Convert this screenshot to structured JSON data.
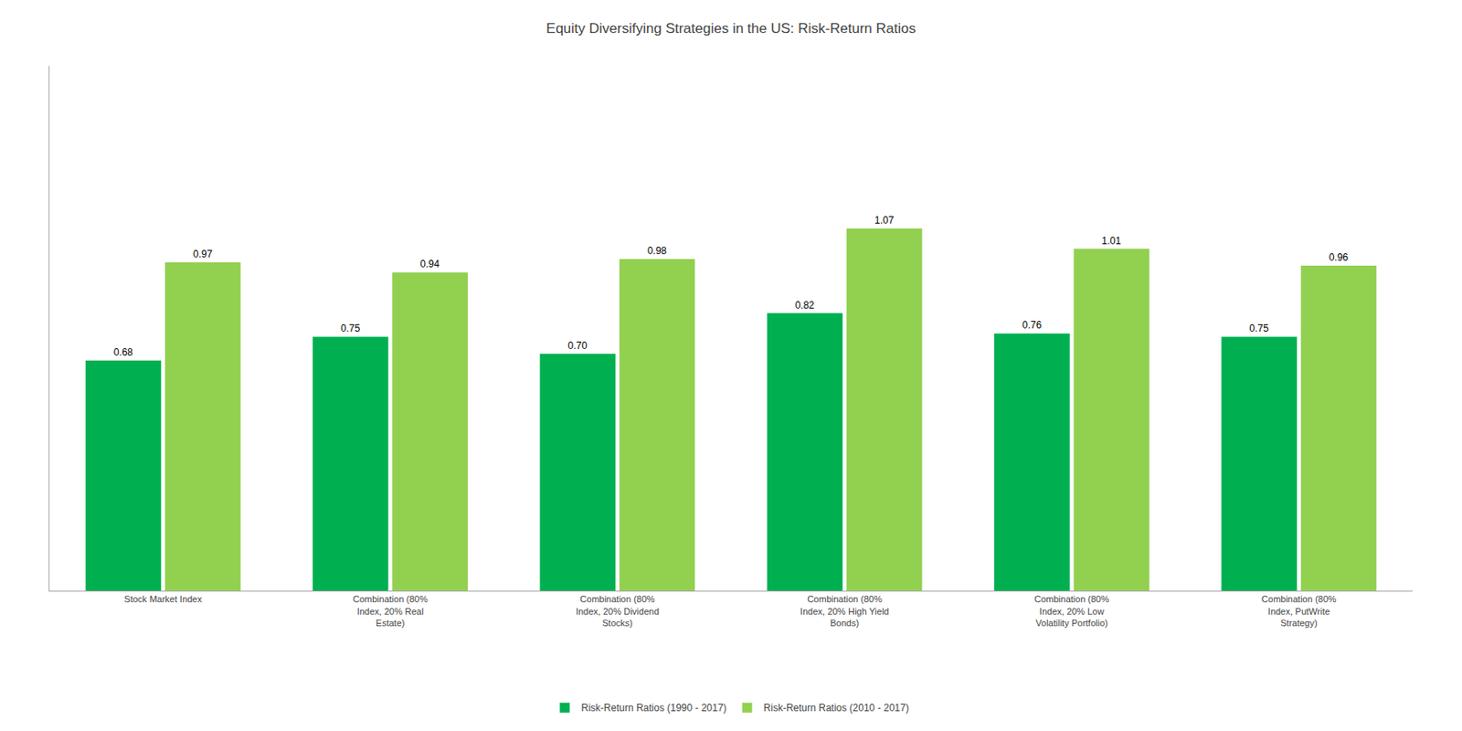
{
  "chart_data": {
    "type": "bar",
    "title": "Equity Diversifying Strategies in the US: Risk-Return Ratios",
    "categories": [
      "Stock Market Index",
      "Combination (80%\nIndex, 20% Real\nEstate)",
      "Combination (80%\nIndex, 20% Dividend\nStocks)",
      "Combination (80%\nIndex, 20% High Yield\nBonds)",
      "Combination (80%\nIndex, 20% Low\nVolatility Portfolio)",
      "Combination (80%\nIndex, PutWrite\nStrategy)"
    ],
    "series": [
      {
        "name": "Risk-Return Ratios (1990 - 2017)",
        "color": "#00b050",
        "values": [
          0.68,
          0.75,
          0.7,
          0.82,
          0.76,
          0.75
        ],
        "value_labels": [
          "0.68",
          "0.75",
          "0.70",
          "0.82",
          "0.76",
          "0.75"
        ]
      },
      {
        "name": "Risk-Return Ratios (2010 - 2017)",
        "color": "#92d050",
        "values": [
          0.97,
          0.94,
          0.98,
          1.07,
          1.01,
          0.96
        ],
        "value_labels": [
          "0.97",
          "0.94",
          "0.98",
          "1.07",
          "1.01",
          "0.96"
        ]
      }
    ],
    "ylim": [
      0,
      1.55
    ],
    "grid": false,
    "legend": "bottom",
    "data_labels": true,
    "tick_labels": "x"
  }
}
